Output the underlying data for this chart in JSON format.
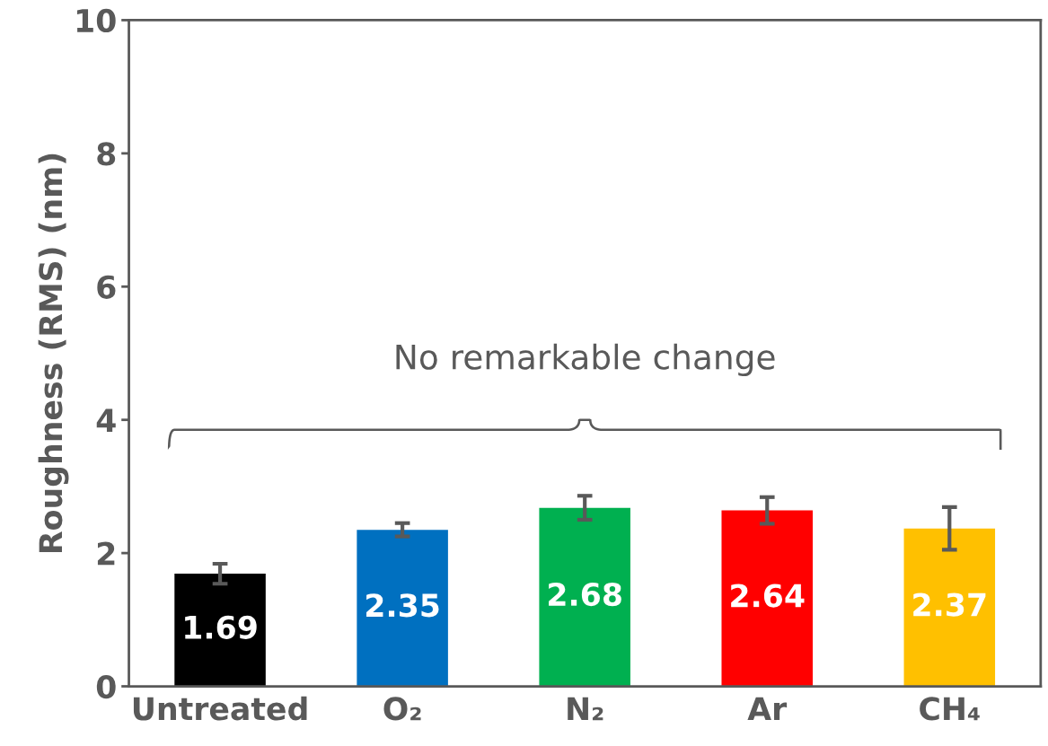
{
  "chart_data": {
    "type": "bar",
    "ylabel": "Roughness (RMS) (nm)",
    "categories": [
      "Untreated",
      "O₂",
      "N₂",
      "Ar",
      "CH₄"
    ],
    "values": [
      1.69,
      2.35,
      2.68,
      2.64,
      2.37
    ],
    "errors": [
      0.15,
      0.1,
      0.18,
      0.2,
      0.32
    ],
    "colors": [
      "#000000",
      "#0070c0",
      "#00b050",
      "#ff0000",
      "#ffc000"
    ],
    "data_labels": true,
    "ylim": [
      0,
      10
    ],
    "yticks": [
      0,
      2,
      4,
      6,
      8,
      10
    ],
    "annotations": [
      "No remarkable change"
    ],
    "grid": false,
    "legend": false
  }
}
